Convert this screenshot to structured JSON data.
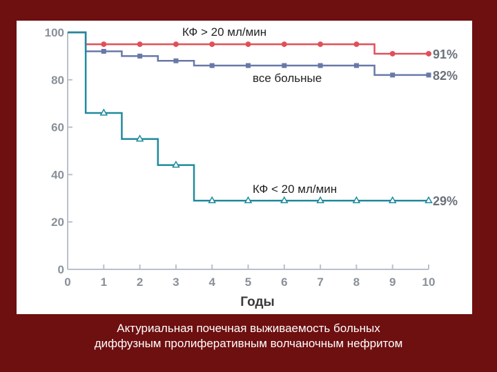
{
  "chart_data": {
    "type": "line",
    "step": true,
    "xlabel": "Годы",
    "ylabel": "",
    "xlim": [
      0,
      10
    ],
    "ylim": [
      0,
      100
    ],
    "x_ticks": [
      "0",
      "1",
      "2",
      "3",
      "4",
      "5",
      "6",
      "7",
      "8",
      "9",
      "10"
    ],
    "y_ticks": [
      "0",
      "20",
      "40",
      "60",
      "80",
      "100"
    ],
    "grid": false,
    "series": [
      {
        "name": "КФ > 20 мл/мин",
        "color": "#e0505a",
        "marker": "circle",
        "end_label": "91%",
        "steps": [
          [
            0,
            100
          ],
          [
            0.5,
            95
          ],
          [
            8.5,
            91
          ],
          [
            10,
            91
          ]
        ],
        "markers": [
          [
            1,
            95
          ],
          [
            2,
            95
          ],
          [
            3,
            95
          ],
          [
            4,
            95
          ],
          [
            5,
            95
          ],
          [
            6,
            95
          ],
          [
            7,
            95
          ],
          [
            8,
            95
          ],
          [
            9,
            91
          ],
          [
            10,
            91
          ]
        ]
      },
      {
        "name": "все больные",
        "color": "#6878a8",
        "marker": "square",
        "end_label": "82%",
        "steps": [
          [
            0,
            100
          ],
          [
            0.5,
            92
          ],
          [
            1.5,
            90
          ],
          [
            2.5,
            88
          ],
          [
            3.5,
            86
          ],
          [
            8.5,
            82
          ],
          [
            10,
            82
          ]
        ],
        "markers": [
          [
            1,
            92
          ],
          [
            2,
            90
          ],
          [
            3,
            88
          ],
          [
            4,
            86
          ],
          [
            5,
            86
          ],
          [
            6,
            86
          ],
          [
            7,
            86
          ],
          [
            8,
            86
          ],
          [
            9,
            82
          ],
          [
            10,
            82
          ]
        ]
      },
      {
        "name": "КФ < 20 мл/мин",
        "color": "#1f8a9c",
        "marker": "triangle",
        "end_label": "29%",
        "steps": [
          [
            0,
            100
          ],
          [
            0.5,
            66
          ],
          [
            1.5,
            55
          ],
          [
            2.5,
            44
          ],
          [
            3.5,
            29
          ],
          [
            10,
            29
          ]
        ],
        "markers": [
          [
            1,
            66
          ],
          [
            2,
            55
          ],
          [
            3,
            44
          ],
          [
            4,
            29
          ],
          [
            5,
            29
          ],
          [
            6,
            29
          ],
          [
            7,
            29
          ],
          [
            8,
            29
          ],
          [
            9,
            29
          ],
          [
            10,
            29
          ]
        ]
      }
    ]
  },
  "caption": {
    "line1": "Актуриальная почечная выживаемость больных",
    "line2": "диффузным пролиферативным волчаночным нефритом"
  }
}
